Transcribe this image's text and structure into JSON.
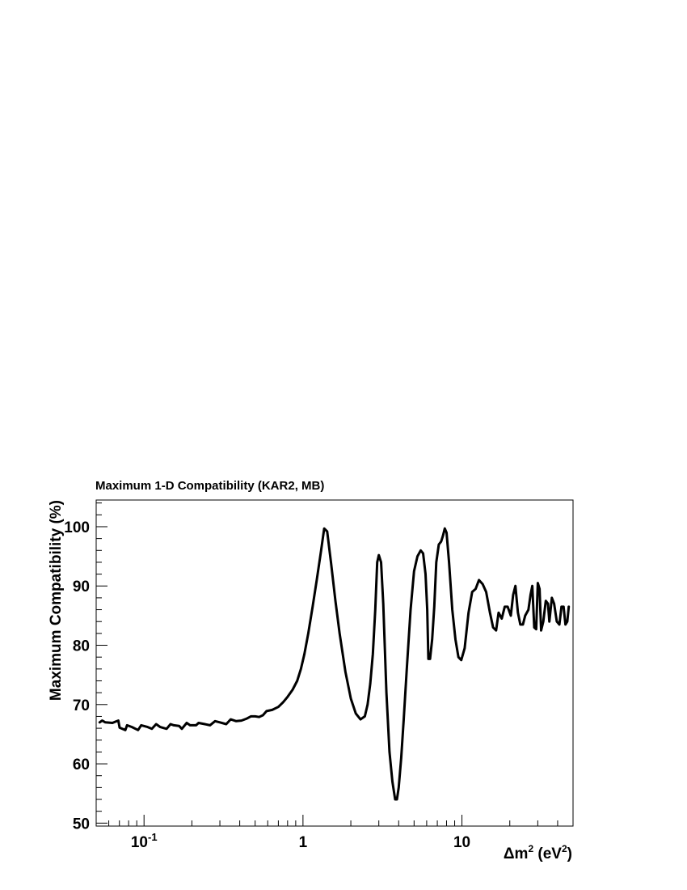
{
  "chart_data": {
    "type": "line",
    "title": "Maximum 1-D Compatibility (KAR2, MB)",
    "xlabel": {
      "prefix": "Δm",
      "sup1": "2",
      "mid": " (eV",
      "sup2": "2",
      "suffix": ")"
    },
    "ylabel": "Maximum Compatibility (%)",
    "xscale": "log",
    "xlim": [
      0.05,
      50
    ],
    "ylim": [
      49.5,
      104.5
    ],
    "grid": false,
    "x_tick_labels": [
      {
        "value": 0.1,
        "base": "10",
        "exp": "-1"
      },
      {
        "value": 1,
        "base": "1",
        "exp": ""
      },
      {
        "value": 10,
        "base": "10",
        "exp": ""
      }
    ],
    "y_ticks": [
      50,
      60,
      70,
      80,
      90,
      100
    ],
    "series": [
      {
        "color": "#000000",
        "points": [
          [
            0.0526,
            67.0
          ],
          [
            0.0545,
            67.3
          ],
          [
            0.0571,
            67.0
          ],
          [
            0.0633,
            66.9
          ],
          [
            0.066,
            67.1
          ],
          [
            0.0689,
            67.3
          ],
          [
            0.0702,
            66.1
          ],
          [
            0.0763,
            65.7
          ],
          [
            0.0782,
            66.5
          ],
          [
            0.084,
            66.2
          ],
          [
            0.0917,
            65.7
          ],
          [
            0.096,
            66.5
          ],
          [
            0.1054,
            66.2
          ],
          [
            0.112,
            65.9
          ],
          [
            0.1192,
            66.7
          ],
          [
            0.1266,
            66.2
          ],
          [
            0.1386,
            65.9
          ],
          [
            0.1468,
            66.7
          ],
          [
            0.1539,
            66.5
          ],
          [
            0.1662,
            66.4
          ],
          [
            0.1729,
            65.9
          ],
          [
            0.1855,
            66.9
          ],
          [
            0.195,
            66.5
          ],
          [
            0.2126,
            66.5
          ],
          [
            0.2203,
            66.9
          ],
          [
            0.2414,
            66.7
          ],
          [
            0.26,
            66.5
          ],
          [
            0.28,
            67.2
          ],
          [
            0.3,
            67.0
          ],
          [
            0.3289,
            66.7
          ],
          [
            0.351,
            67.5
          ],
          [
            0.38,
            67.2
          ],
          [
            0.41,
            67.3
          ],
          [
            0.44,
            67.6
          ],
          [
            0.47,
            68.0
          ],
          [
            0.5,
            68.0
          ],
          [
            0.53,
            67.9
          ],
          [
            0.56,
            68.2
          ],
          [
            0.59,
            68.9
          ],
          [
            0.64,
            69.1
          ],
          [
            0.7,
            69.6
          ],
          [
            0.75,
            70.4
          ],
          [
            0.8,
            71.3
          ],
          [
            0.86,
            72.5
          ],
          [
            0.92,
            74.0
          ],
          [
            0.97,
            76.0
          ],
          [
            1.02,
            78.5
          ],
          [
            1.08,
            82.0
          ],
          [
            1.15,
            86.5
          ],
          [
            1.22,
            91.0
          ],
          [
            1.3,
            96.0
          ],
          [
            1.36,
            99.7
          ],
          [
            1.42,
            99.2
          ],
          [
            1.5,
            94.0
          ],
          [
            1.6,
            87.5
          ],
          [
            1.7,
            82.0
          ],
          [
            1.85,
            75.5
          ],
          [
            2.0,
            71.0
          ],
          [
            2.15,
            68.5
          ],
          [
            2.3,
            67.5
          ],
          [
            2.45,
            68.0
          ],
          [
            2.55,
            70.0
          ],
          [
            2.65,
            73.5
          ],
          [
            2.75,
            78.5
          ],
          [
            2.85,
            86.0
          ],
          [
            2.93,
            94.0
          ],
          [
            3.0,
            95.2
          ],
          [
            3.1,
            94.0
          ],
          [
            3.2,
            87.0
          ],
          [
            3.35,
            72.0
          ],
          [
            3.5,
            62.0
          ],
          [
            3.65,
            57.0
          ],
          [
            3.8,
            54.0
          ],
          [
            3.9,
            54.0
          ],
          [
            4.0,
            56.0
          ],
          [
            4.15,
            61.0
          ],
          [
            4.3,
            67.5
          ],
          [
            4.5,
            76.0
          ],
          [
            4.75,
            86.0
          ],
          [
            5.0,
            92.5
          ],
          [
            5.25,
            95.0
          ],
          [
            5.5,
            96.0
          ],
          [
            5.7,
            95.5
          ],
          [
            5.9,
            92.0
          ],
          [
            6.05,
            86.0
          ],
          [
            6.15,
            77.7
          ],
          [
            6.3,
            77.7
          ],
          [
            6.5,
            81.0
          ],
          [
            6.7,
            86.5
          ],
          [
            6.9,
            94.0
          ],
          [
            7.15,
            97.0
          ],
          [
            7.4,
            97.5
          ],
          [
            7.6,
            98.5
          ],
          [
            7.8,
            99.7
          ],
          [
            8.0,
            99.0
          ],
          [
            8.3,
            94.0
          ],
          [
            8.7,
            86.0
          ],
          [
            9.1,
            81.0
          ],
          [
            9.5,
            78.0
          ],
          [
            9.9,
            77.5
          ],
          [
            10.4,
            79.5
          ],
          [
            11.0,
            85.5
          ],
          [
            11.6,
            89.0
          ],
          [
            12.2,
            89.5
          ],
          [
            12.8,
            91.0
          ],
          [
            13.5,
            90.3
          ],
          [
            14.2,
            89.0
          ],
          [
            15.0,
            85.5
          ],
          [
            15.7,
            83.0
          ],
          [
            16.4,
            82.5
          ],
          [
            17.0,
            85.5
          ],
          [
            17.8,
            84.5
          ],
          [
            18.6,
            86.5
          ],
          [
            19.4,
            86.5
          ],
          [
            20.3,
            85.0
          ],
          [
            21.0,
            88.5
          ],
          [
            21.7,
            90.0
          ],
          [
            22.5,
            85.5
          ],
          [
            23.3,
            83.5
          ],
          [
            24.2,
            83.5
          ],
          [
            25.0,
            85.0
          ],
          [
            26.2,
            86.0
          ],
          [
            27.0,
            88.5
          ],
          [
            27.7,
            90.0
          ],
          [
            28.5,
            83.0
          ],
          [
            29.3,
            82.7
          ],
          [
            30.0,
            90.5
          ],
          [
            30.8,
            89.5
          ],
          [
            31.5,
            82.5
          ],
          [
            32.5,
            84.0
          ],
          [
            33.7,
            87.5
          ],
          [
            34.8,
            87.0
          ],
          [
            35.5,
            84.0
          ],
          [
            36.8,
            88.0
          ],
          [
            38.0,
            87.0
          ],
          [
            39.5,
            84.0
          ],
          [
            41.0,
            83.5
          ],
          [
            42.3,
            86.5
          ],
          [
            43.6,
            86.5
          ],
          [
            44.8,
            83.5
          ],
          [
            46.0,
            84.0
          ],
          [
            47.0,
            86.5
          ]
        ]
      }
    ]
  }
}
